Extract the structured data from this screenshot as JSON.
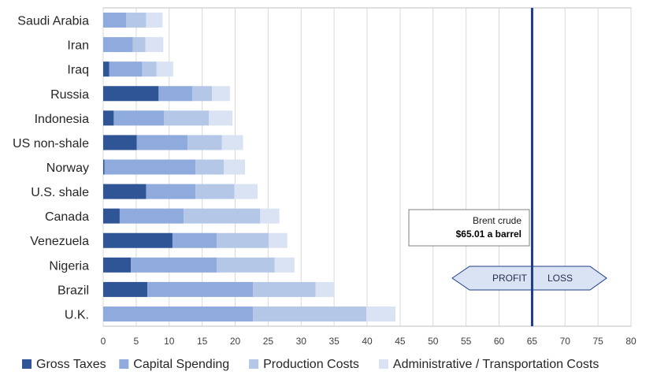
{
  "chart_data": {
    "type": "bar",
    "orientation": "horizontal",
    "stacked": true,
    "categories": [
      "Saudi Arabia",
      "Iran",
      "Iraq",
      "Russia",
      "Indonesia",
      "US non-shale",
      "Norway",
      "U.S. shale",
      "Canada",
      "Venezuela",
      "Nigeria",
      "Brazil",
      "U.K."
    ],
    "series": [
      {
        "name": "Gross Taxes",
        "color": "#2f5597",
        "values": [
          0,
          0,
          0.9,
          8.4,
          1.6,
          5.1,
          0.2,
          6.5,
          2.5,
          10.5,
          4.2,
          6.7,
          0
        ]
      },
      {
        "name": "Capital Spending",
        "color": "#8faadc",
        "values": [
          3.5,
          4.5,
          5.0,
          5.1,
          7.6,
          7.7,
          13.8,
          7.5,
          9.7,
          6.7,
          13.0,
          16.0,
          22.7
        ]
      },
      {
        "name": "Production Costs",
        "color": "#b4c7e7",
        "values": [
          3.0,
          1.9,
          2.2,
          3.0,
          6.8,
          5.2,
          4.3,
          5.9,
          11.6,
          7.9,
          8.8,
          9.5,
          17.2
        ]
      },
      {
        "name": "Administrative / Transportation Costs",
        "color": "#dae3f3",
        "values": [
          2.5,
          2.7,
          2.5,
          2.7,
          3.6,
          3.2,
          3.2,
          3.5,
          2.9,
          2.8,
          3.0,
          2.8,
          4.4
        ]
      }
    ],
    "x_ticks": [
      "0",
      "5",
      "10",
      "15",
      "20",
      "25",
      "30",
      "35",
      "40",
      "45",
      "50",
      "55",
      "60",
      "65",
      "70",
      "75",
      "80"
    ],
    "xlim": [
      0,
      80
    ],
    "grid": "vertical",
    "legend_position": "bottom",
    "reference_line": {
      "value": 65.01,
      "color": "#1f3c88"
    },
    "callout": {
      "line1": "Brent crude",
      "line2": "$65.01 a barrel"
    },
    "arrow": {
      "left_label": "PROFIT",
      "right_label": "LOSS"
    }
  }
}
